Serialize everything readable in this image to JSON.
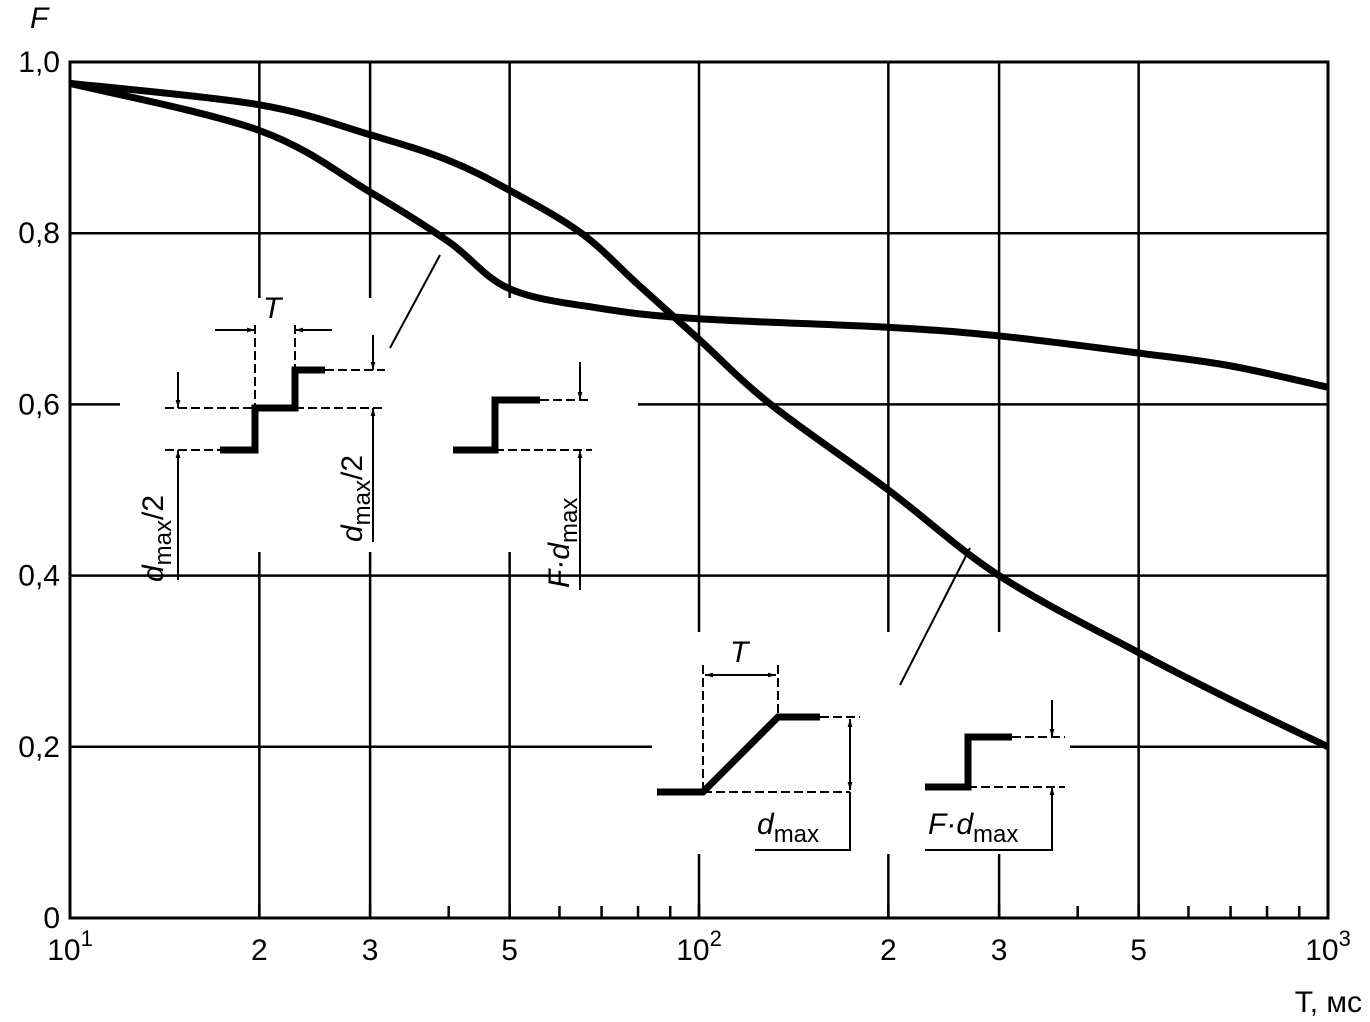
{
  "chart_data": {
    "type": "line",
    "ylabel": "F",
    "xlabel": "T, мс",
    "xscale": "log",
    "xlim": [
      10,
      1000
    ],
    "ylim": [
      0,
      1
    ],
    "xticks": [
      {
        "value": 10,
        "label": "10",
        "exponent": "1"
      },
      {
        "value": 20,
        "label": "2"
      },
      {
        "value": 30,
        "label": "3"
      },
      {
        "value": 50,
        "label": "5"
      },
      {
        "value": 100,
        "label": "10",
        "exponent": "2"
      },
      {
        "value": 200,
        "label": "2"
      },
      {
        "value": 300,
        "label": "3"
      },
      {
        "value": 500,
        "label": "5"
      },
      {
        "value": 1000,
        "label": "10",
        "exponent": "3"
      }
    ],
    "xminor": [
      40,
      60,
      70,
      80,
      90,
      400,
      600,
      700,
      800,
      900
    ],
    "yticks": [
      0,
      {
        "value": 0.2,
        "label": "0,2"
      },
      {
        "value": 0.4,
        "label": "0,4"
      },
      {
        "value": 0.6,
        "label": "0,6"
      },
      {
        "value": 0.8,
        "label": "0,8"
      },
      {
        "value": 1.0,
        "label": "1,0"
      }
    ],
    "grid": true,
    "series": [
      {
        "color": "#000000",
        "x": [
          10,
          20,
          30,
          40,
          50,
          65,
          80,
          100,
          130,
          200,
          300,
          500,
          700,
          1000
        ],
        "values": [
          0.975,
          0.95,
          0.915,
          0.885,
          0.85,
          0.8,
          0.74,
          0.676,
          0.6,
          0.5,
          0.4,
          0.31,
          0.255,
          0.2
        ]
      },
      {
        "color": "#000000",
        "x": [
          10,
          20,
          30,
          40,
          50,
          70,
          100,
          200,
          300,
          500,
          700,
          1000
        ],
        "values": [
          0.975,
          0.92,
          0.848,
          0.79,
          0.735,
          0.712,
          0.7,
          0.69,
          0.68,
          0.66,
          0.645,
          0.62
        ]
      }
    ],
    "annotations": {
      "T": "T",
      "d": "d",
      "max": "max",
      "half": "/2",
      "F_dot": "F·"
    }
  }
}
